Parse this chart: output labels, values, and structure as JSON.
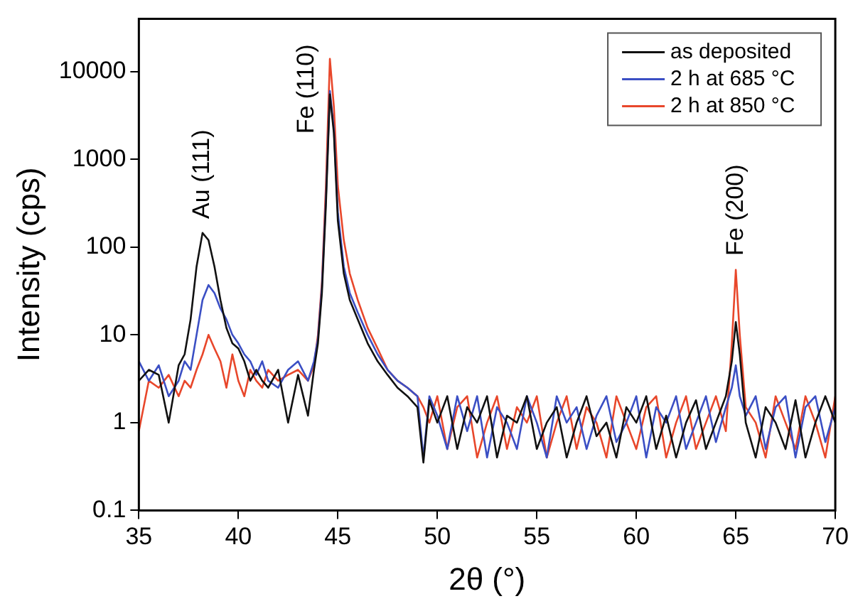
{
  "chart_data": {
    "type": "line",
    "xlabel": "2θ (°)",
    "ylabel": "Intensity (cps)",
    "log": "y",
    "xlim": [
      35,
      70
    ],
    "xticks": [
      35,
      40,
      45,
      50,
      55,
      60,
      65,
      70
    ],
    "ylim": [
      0.1,
      40000
    ],
    "yticks": [
      0.1,
      1,
      10,
      100,
      1000,
      10000
    ],
    "grid": false,
    "legend": "top right",
    "marker": "none",
    "line_style": "solid",
    "annotations": [
      {
        "text": "Au (111)",
        "x": 38.2,
        "y": 145
      },
      {
        "text": "Fe (110)",
        "x": 44.6,
        "y": 14000
      },
      {
        "text": "Fe (200)",
        "x": 65,
        "y": 55
      }
    ],
    "series": [
      {
        "name": "as deposited",
        "color": "#111111",
        "x": [
          35,
          35.5,
          36,
          36.5,
          37,
          37.3,
          37.6,
          37.9,
          38.2,
          38.5,
          38.8,
          39.1,
          39.4,
          39.7,
          40,
          40.3,
          40.6,
          40.9,
          41.2,
          41.5,
          42,
          42.5,
          43,
          43.5,
          43.8,
          44,
          44.2,
          44.4,
          44.6,
          44.8,
          45,
          45.3,
          45.6,
          46,
          46.5,
          47,
          47.5,
          48,
          48.5,
          49,
          49.3,
          49.6,
          50,
          50.5,
          51,
          51.5,
          52,
          52.5,
          53,
          53.5,
          54,
          54.5,
          55,
          55.5,
          56,
          56.5,
          57,
          57.5,
          58,
          58.5,
          59,
          59.5,
          60,
          60.5,
          61,
          61.5,
          62,
          62.5,
          63,
          63.5,
          64,
          64.5,
          64.8,
          65,
          65.2,
          65.5,
          66,
          66.5,
          67,
          67.5,
          68,
          68.5,
          69,
          69.5,
          70
        ],
        "values": [
          3,
          4,
          3.5,
          1,
          4.5,
          6,
          15,
          60,
          145,
          120,
          60,
          25,
          12,
          8,
          7,
          5,
          3,
          4,
          3,
          2.5,
          4,
          1,
          3.5,
          1.2,
          4,
          8,
          30,
          300,
          5500,
          2000,
          200,
          50,
          25,
          15,
          8,
          5,
          3.5,
          2.5,
          2,
          1.5,
          0.35,
          1.8,
          1,
          2,
          0.5,
          1.5,
          1,
          2,
          0.4,
          1.2,
          1,
          2,
          0.5,
          1,
          1.5,
          0.4,
          1,
          2,
          0.7,
          1,
          0.4,
          1.5,
          1,
          2,
          0.5,
          1.2,
          0.4,
          1,
          1.8,
          0.5,
          1,
          2,
          5,
          14,
          6,
          1,
          0.4,
          1.5,
          1,
          0.5,
          1.8,
          0.4,
          1,
          2,
          1
        ]
      },
      {
        "name": "2 h at 685 °C",
        "color": "#3b4fc4",
        "x": [
          35,
          35.5,
          36,
          36.5,
          37,
          37.3,
          37.6,
          37.9,
          38.2,
          38.5,
          38.8,
          39.1,
          39.4,
          39.7,
          40,
          40.3,
          40.6,
          40.9,
          41.2,
          41.5,
          42,
          42.5,
          43,
          43.5,
          43.8,
          44,
          44.2,
          44.4,
          44.6,
          44.8,
          45,
          45.3,
          45.6,
          46,
          46.5,
          47,
          47.5,
          48,
          48.5,
          49,
          49.3,
          49.6,
          50,
          50.5,
          51,
          51.5,
          52,
          52.5,
          53,
          53.5,
          54,
          54.5,
          55,
          55.5,
          56,
          56.5,
          57,
          57.5,
          58,
          58.5,
          59,
          59.5,
          60,
          60.5,
          61,
          61.5,
          62,
          62.5,
          63,
          63.5,
          64,
          64.5,
          64.8,
          65,
          65.2,
          65.5,
          66,
          66.5,
          67,
          67.5,
          68,
          68.5,
          69,
          69.5,
          70
        ],
        "values": [
          5,
          3,
          4.5,
          2,
          3,
          5,
          4,
          10,
          25,
          37,
          30,
          20,
          15,
          10,
          8,
          6,
          5,
          3.5,
          5,
          3,
          2.5,
          4,
          5,
          3,
          5,
          9,
          35,
          350,
          6000,
          2200,
          250,
          60,
          30,
          18,
          10,
          6,
          4,
          3,
          2.5,
          2,
          0.4,
          2,
          1.2,
          0.5,
          2,
          0.8,
          2,
          0.4,
          1.5,
          1,
          0.5,
          2,
          1,
          0.4,
          2,
          1,
          1.5,
          0.5,
          1.2,
          2,
          0.6,
          1,
          2,
          0.4,
          1.5,
          1,
          2,
          0.5,
          1,
          2,
          0.6,
          1.5,
          2.5,
          4.5,
          2,
          1.2,
          2,
          0.5,
          1.5,
          2,
          0.4,
          1.5,
          2,
          0.6,
          1.5
        ]
      },
      {
        "name": "2 h at 850 °C",
        "color": "#e8472b",
        "x": [
          35,
          35.5,
          36,
          36.5,
          37,
          37.3,
          37.6,
          37.9,
          38.2,
          38.5,
          38.8,
          39.1,
          39.4,
          39.7,
          40,
          40.3,
          40.6,
          40.9,
          41.2,
          41.5,
          42,
          42.5,
          43,
          43.5,
          43.8,
          44,
          44.2,
          44.4,
          44.6,
          44.8,
          45,
          45.3,
          45.6,
          46,
          46.5,
          47,
          47.5,
          48,
          48.5,
          49,
          49.3,
          49.6,
          50,
          50.5,
          51,
          51.5,
          52,
          52.5,
          53,
          53.5,
          54,
          54.5,
          55,
          55.5,
          56,
          56.5,
          57,
          57.5,
          58,
          58.5,
          59,
          59.5,
          60,
          60.5,
          61,
          61.5,
          62,
          62.5,
          63,
          63.5,
          64,
          64.5,
          64.8,
          65,
          65.2,
          65.5,
          66,
          66.5,
          67,
          67.5,
          68,
          68.5,
          69,
          69.5,
          70
        ],
        "values": [
          0.8,
          3,
          2.5,
          3.5,
          2,
          3,
          2.5,
          4,
          6,
          10,
          7,
          5,
          2.5,
          6,
          3,
          2,
          4,
          3,
          2.5,
          4,
          3,
          3.5,
          4,
          3,
          4.5,
          10,
          40,
          500,
          14000,
          4000,
          500,
          120,
          50,
          25,
          12,
          7,
          4,
          3,
          2.5,
          2,
          1.5,
          1,
          2,
          0.5,
          1.5,
          2,
          0.4,
          1,
          2,
          0.5,
          1.5,
          1,
          2,
          0.4,
          1,
          2,
          0.5,
          1.5,
          1,
          0.4,
          2,
          1,
          0.5,
          1.5,
          2,
          0.4,
          1,
          2,
          0.5,
          1,
          2,
          0.8,
          8,
          55,
          10,
          1.5,
          1,
          0.4,
          2,
          1,
          0.5,
          2,
          1,
          0.4,
          2
        ]
      }
    ]
  }
}
